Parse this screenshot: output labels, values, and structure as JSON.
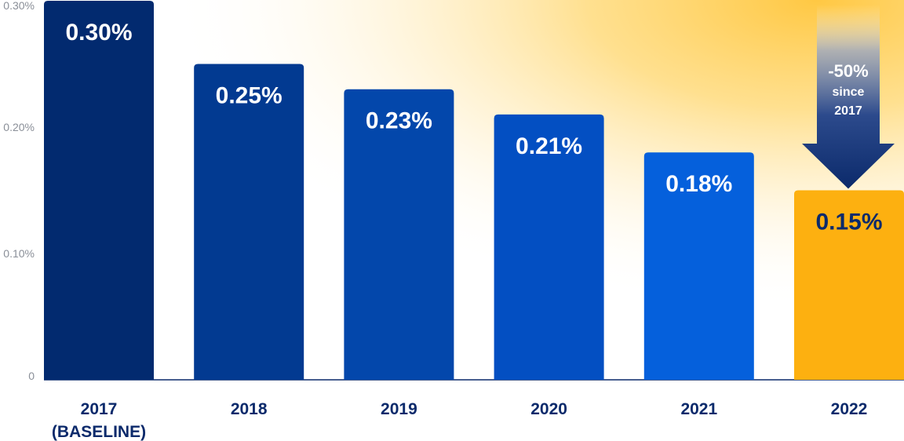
{
  "chart_data": {
    "type": "bar",
    "categories": [
      "2017",
      "2018",
      "2019",
      "2020",
      "2021",
      "2022"
    ],
    "category_sublabels": [
      "(BASELINE)",
      "",
      "",
      "",
      "",
      ""
    ],
    "values": [
      0.3,
      0.25,
      0.23,
      0.21,
      0.18,
      0.15
    ],
    "value_labels": [
      "0.30%",
      "0.25%",
      "0.23%",
      "0.21%",
      "0.18%",
      "0.15%"
    ],
    "ylim": [
      0,
      0.3
    ],
    "yticks": [
      {
        "value": 0,
        "label": "0"
      },
      {
        "value": 0.1,
        "label": "0.10%"
      },
      {
        "value": 0.2,
        "label": "0.20%"
      },
      {
        "value": 0.3,
        "label": "0.30%"
      }
    ],
    "title": "",
    "xlabel": "",
    "ylabel": "",
    "grid": false,
    "bar_colors": [
      "#022a6f",
      "#023a91",
      "#0347ab",
      "#034fc2",
      "#0560dc",
      "#fdb010"
    ],
    "bar_label_colors": [
      "#ffffff",
      "#ffffff",
      "#ffffff",
      "#ffffff",
      "#ffffff",
      "#0b2a6b"
    ],
    "annotation": {
      "line1": "-50%",
      "line2": "since",
      "line3": "2017",
      "target_category": "2022"
    }
  }
}
